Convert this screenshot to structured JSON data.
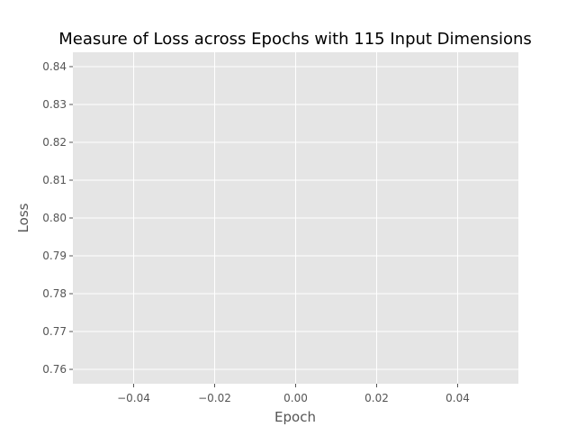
{
  "chart_data": {
    "type": "line",
    "title": "Measure of Loss across Epochs with 115 Input Dimensions",
    "xlabel": "Epoch",
    "ylabel": "Loss",
    "xlim": [
      -0.055,
      0.055
    ],
    "ylim": [
      0.7562,
      0.8438
    ],
    "x_ticks": [
      -0.04,
      -0.02,
      0.0,
      0.02,
      0.04
    ],
    "x_tick_labels": [
      "−0.04",
      "−0.02",
      "0.00",
      "0.02",
      "0.04"
    ],
    "y_ticks": [
      0.76,
      0.77,
      0.78,
      0.79,
      0.8,
      0.81,
      0.82,
      0.83,
      0.84
    ],
    "y_tick_labels": [
      "0.76",
      "0.77",
      "0.78",
      "0.79",
      "0.80",
      "0.81",
      "0.82",
      "0.83",
      "0.84"
    ],
    "grid": true,
    "series": [
      {
        "x": [],
        "y": []
      }
    ],
    "colors": {
      "plot_background": "#e5e5e5",
      "grid": "#ffffff",
      "tick_text": "#555555",
      "title_text": "#000000"
    }
  }
}
